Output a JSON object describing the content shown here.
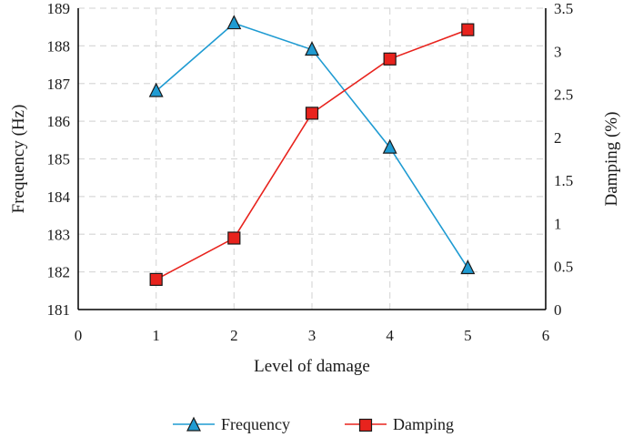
{
  "chart_data": {
    "type": "line",
    "xlabel": "Level of damage",
    "ylabel": "Frequency (Hz)",
    "y2label": "Damping (%)",
    "xlim": [
      0,
      6
    ],
    "ylim": [
      181,
      189
    ],
    "y2lim": [
      0,
      3.5
    ],
    "xticks": [
      "0",
      "1",
      "2",
      "3",
      "4",
      "5",
      "6"
    ],
    "yticks": [
      "181",
      "182",
      "183",
      "184",
      "185",
      "186",
      "187",
      "188",
      "189"
    ],
    "y2ticks": [
      "0",
      "0.5",
      "1",
      "1.5",
      "2",
      "2.5",
      "3",
      "3.5"
    ],
    "grid": true,
    "legend_position": "bottom",
    "series": [
      {
        "name": "Frequency",
        "axis": "left",
        "marker": "triangle",
        "color": "#1F9BD2",
        "x": [
          1,
          2,
          3,
          4,
          5
        ],
        "values": [
          186.8,
          188.6,
          187.9,
          185.3,
          182.1
        ]
      },
      {
        "name": "Damping",
        "axis": "right",
        "marker": "square",
        "color": "#E8231D",
        "x": [
          1,
          2,
          3,
          4,
          5
        ],
        "values": [
          0.35,
          0.83,
          2.28,
          2.91,
          3.25
        ]
      }
    ]
  }
}
